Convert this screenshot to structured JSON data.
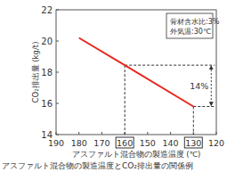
{
  "chart_data": {
    "type": "line",
    "caption": "アスファルト混合物の製造温度とCO₂排出量の関係例",
    "x_label": "アスファルト混合物の製造温度 (℃)",
    "y_label": "CO₂排出量 (kg/t)",
    "x": [
      180,
      160,
      130
    ],
    "series": [
      {
        "name": "CO₂排出量",
        "color": "#e8261c",
        "values": [
          20.2,
          18.45,
          15.8
        ]
      }
    ],
    "xlim": [
      190,
      120
    ],
    "xticks": [
      190,
      180,
      170,
      160,
      150,
      140,
      130,
      120
    ],
    "ylim": [
      14,
      22
    ],
    "yticks": [
      14,
      16,
      18,
      20,
      22
    ],
    "grid": false,
    "notes": [
      "骨材含水比:3%",
      "外気温:30℃"
    ],
    "guides": [
      {
        "x": 160,
        "y": 18.45
      },
      {
        "x": 130,
        "y": 15.8
      }
    ],
    "annotation": "14%"
  }
}
